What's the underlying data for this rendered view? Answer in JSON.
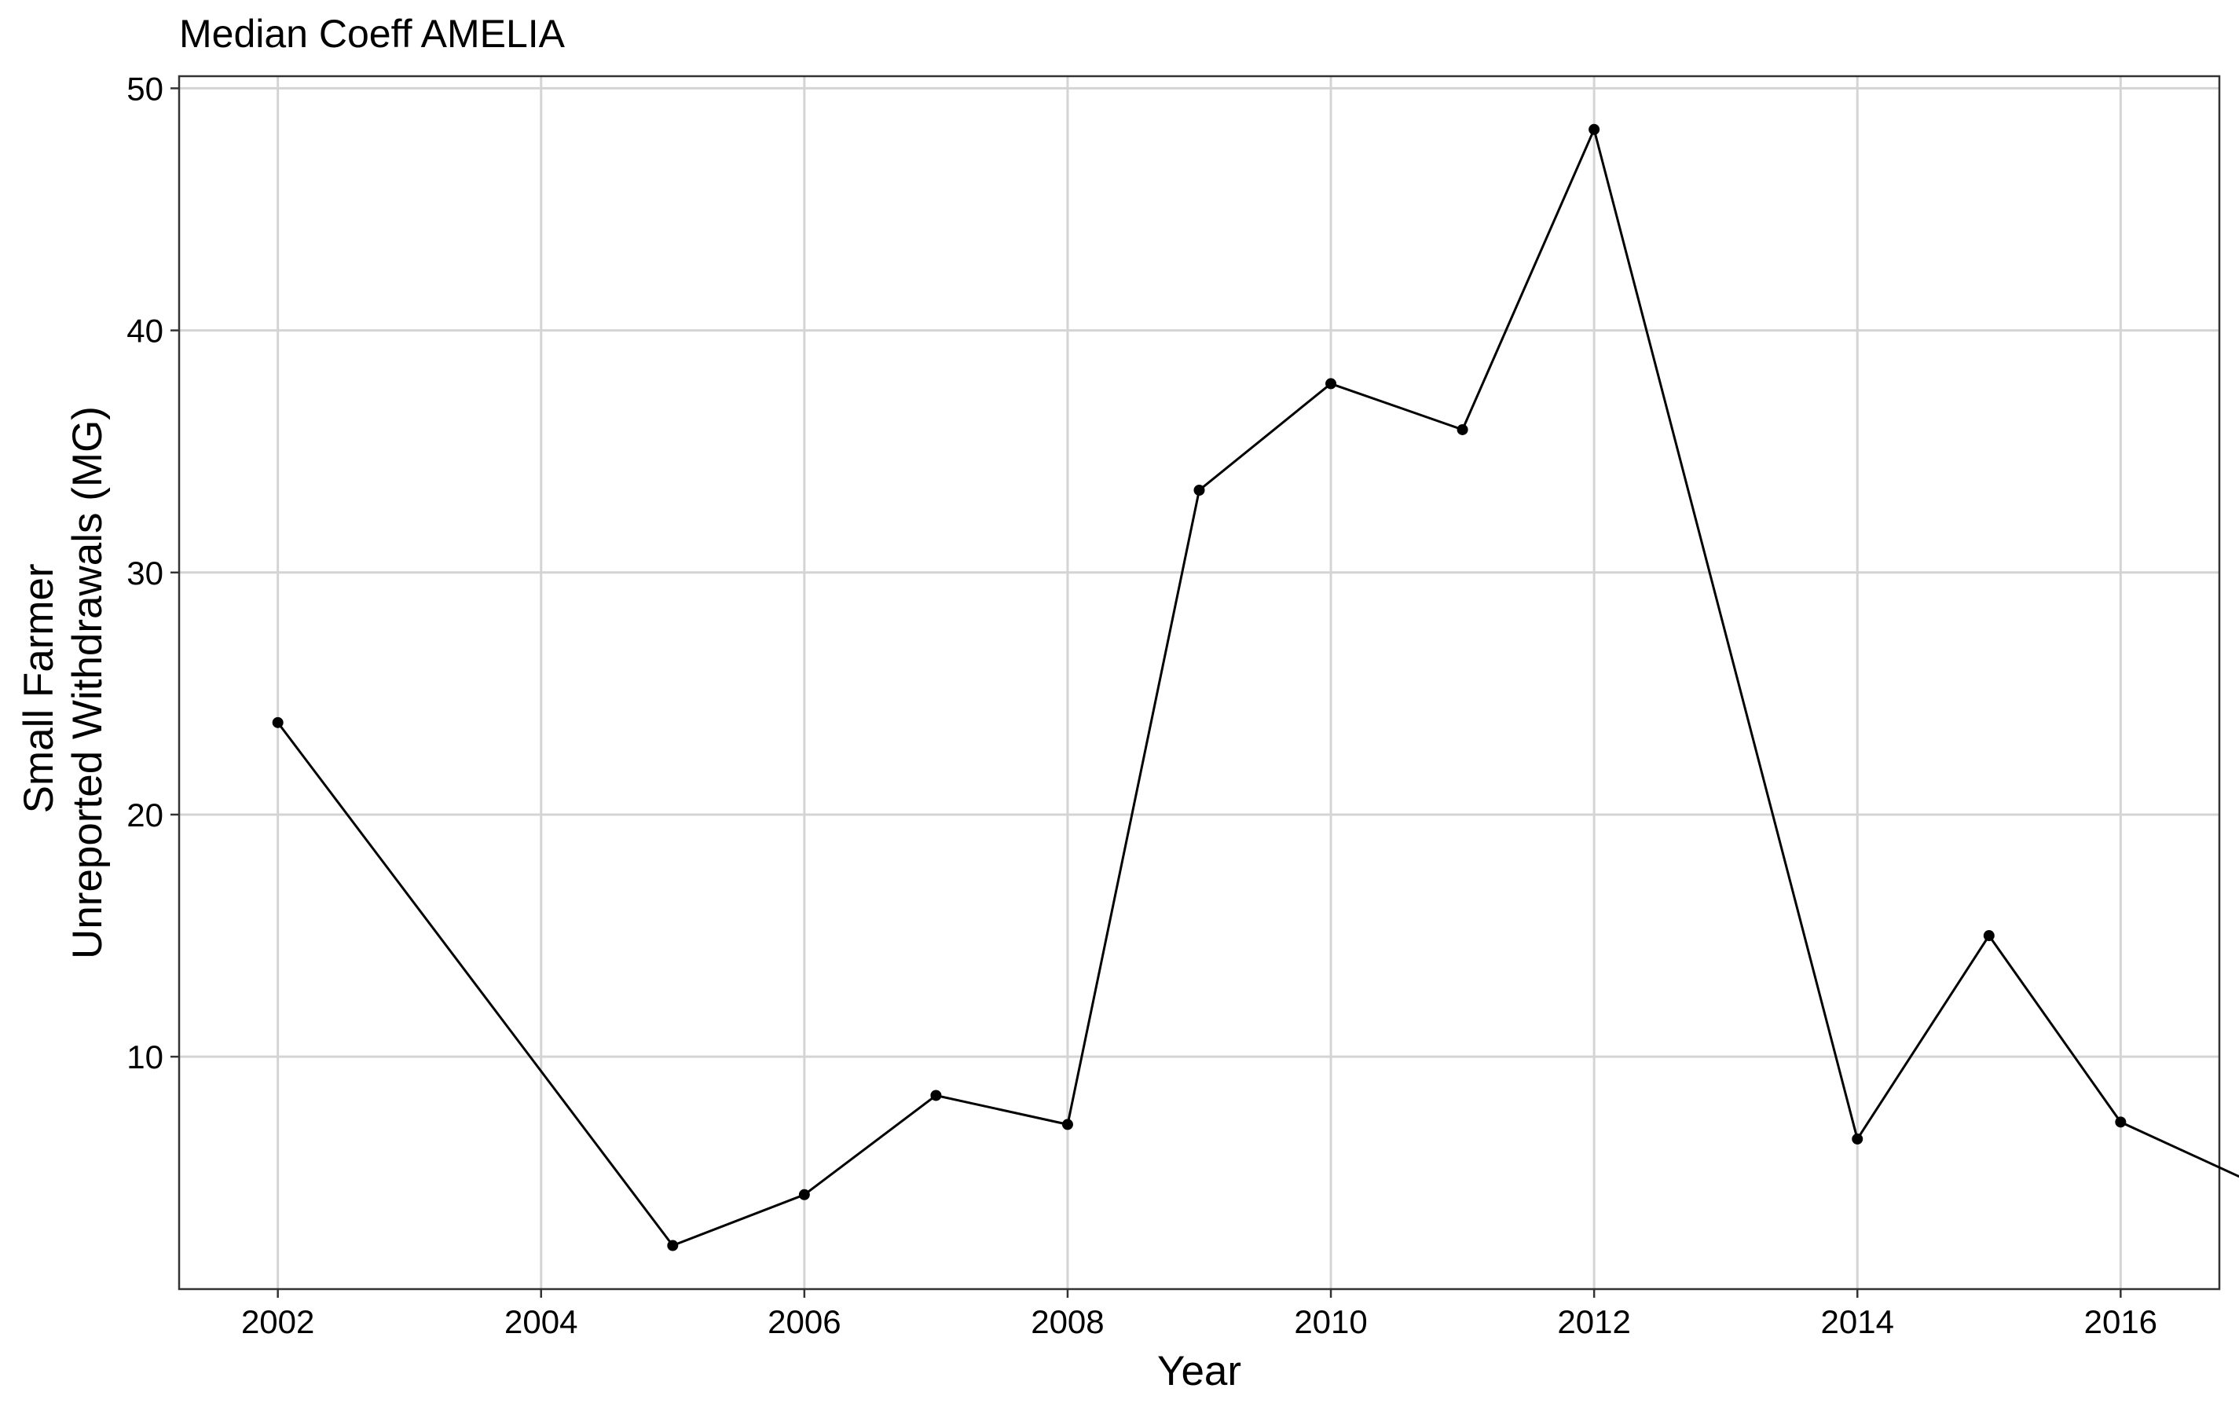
{
  "chart_data": {
    "type": "line",
    "title": "Median Coeff AMELIA",
    "xlabel": "Year",
    "ylabel_lines": [
      "Small Farmer",
      "Unreported Withdrawals (MG)"
    ],
    "x_ticks": [
      "2002",
      "2004",
      "2006",
      "2008",
      "2010",
      "2012",
      "2014",
      "2016"
    ],
    "y_ticks": [
      "10",
      "20",
      "30",
      "40",
      "50"
    ],
    "xlim": [
      2001.25,
      2016.75
    ],
    "ylim": [
      0.4,
      50.5
    ],
    "grid": true,
    "legend": "none",
    "series": [
      {
        "color": "#000000",
        "x": [
          2002,
          2005,
          2006,
          2007,
          2008,
          2009,
          2010,
          2011,
          2012,
          2014,
          2015,
          2016,
          2017
        ],
        "y": [
          23.8,
          2.2,
          4.3,
          8.4,
          7.2,
          33.4,
          37.8,
          35.9,
          48.3,
          6.6,
          15.0,
          7.3,
          4.8
        ]
      }
    ]
  }
}
